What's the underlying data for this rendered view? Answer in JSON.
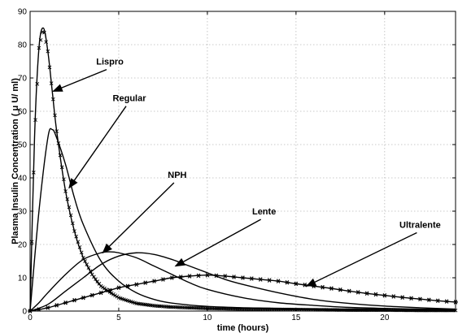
{
  "chart_data": {
    "type": "line",
    "title": "",
    "xlabel": "time (hours)",
    "ylabel": "Plasma Insulin Concentration ( μ U/ ml)",
    "xlim": [
      0,
      24
    ],
    "ylim": [
      0,
      90
    ],
    "xticks": [
      0,
      5,
      10,
      15,
      20
    ],
    "yticks": [
      0,
      10,
      20,
      30,
      40,
      50,
      60,
      70,
      80,
      90
    ],
    "grid": true,
    "legend": "none",
    "series": [
      {
        "marker": "x",
        "x": [
          0,
          0.25,
          0.5,
          0.75,
          1,
          1.25,
          1.5,
          2,
          2.5,
          3,
          3.5,
          4,
          5,
          6,
          7,
          8,
          10,
          12,
          14,
          16,
          18,
          20,
          22,
          24
        ],
        "y": [
          0,
          52,
          79,
          85,
          78,
          66,
          54,
          36,
          24,
          16,
          11,
          7.5,
          4,
          2.3,
          1.6,
          1.2,
          0.8,
          0.6,
          0.5,
          0.4,
          0.3,
          0.3,
          0.2,
          0.2
        ]
      },
      {
        "marker": "none",
        "x": [
          0,
          0.5,
          1,
          1.25,
          1.5,
          2,
          2.5,
          3,
          4,
          5,
          6,
          7,
          8,
          10,
          12,
          14,
          16,
          18,
          20,
          22,
          24
        ],
        "y": [
          0,
          30,
          52,
          54.5,
          52,
          44,
          34,
          26,
          15,
          9,
          5.5,
          3.5,
          2.4,
          1.4,
          1,
          0.8,
          0.6,
          0.5,
          0.4,
          0.3,
          0.3
        ]
      },
      {
        "marker": "none",
        "x": [
          0,
          0.5,
          1,
          2,
          3,
          4,
          4.5,
          5,
          6,
          7,
          8,
          9,
          10,
          12,
          14,
          16,
          18,
          20,
          22,
          24
        ],
        "y": [
          0,
          2.5,
          5.5,
          11,
          15.5,
          17.5,
          17.8,
          17.5,
          16,
          13.5,
          11,
          8.5,
          6.5,
          4,
          2.5,
          1.7,
          1.1,
          0.8,
          0.6,
          0.4
        ]
      },
      {
        "marker": "none",
        "x": [
          0,
          1,
          2,
          3,
          4,
          5,
          6,
          7,
          8,
          9,
          10,
          11,
          12,
          14,
          16,
          18,
          20,
          22,
          24
        ],
        "y": [
          0,
          2,
          6,
          10,
          14,
          16.5,
          17.5,
          17,
          15.5,
          13.5,
          11.5,
          9.5,
          8,
          5.5,
          3.5,
          2.3,
          1.5,
          1,
          0.6
        ]
      },
      {
        "marker": "*",
        "x": [
          0,
          1,
          2,
          3,
          4,
          5,
          6,
          7,
          8,
          9,
          10,
          11,
          12,
          13,
          14,
          15,
          16,
          17,
          18,
          19,
          20,
          21,
          22,
          23,
          24
        ],
        "y": [
          0,
          1,
          2.5,
          4,
          5.5,
          7,
          8,
          9,
          10,
          10.5,
          10.8,
          10.5,
          10,
          9.5,
          9,
          8.2,
          7.5,
          6.8,
          6,
          5.3,
          4.7,
          4.1,
          3.6,
          3.1,
          2.7
        ]
      }
    ],
    "annotations": [
      {
        "text": "Lispro",
        "point": [
          1.3,
          66
        ],
        "text_at": [
          4.5,
          74
        ]
      },
      {
        "text": "Regular",
        "point": [
          2.2,
          37
        ],
        "text_at": [
          5.6,
          63
        ]
      },
      {
        "text": "NPH",
        "point": [
          4.1,
          17.5
        ],
        "text_at": [
          8.3,
          40
        ]
      },
      {
        "text": "Lente",
        "point": [
          8.2,
          13.5
        ],
        "text_at": [
          13.2,
          29
        ]
      },
      {
        "text": "Ultralente",
        "point": [
          15.6,
          7.5
        ],
        "text_at": [
          22.0,
          25
        ]
      }
    ]
  }
}
